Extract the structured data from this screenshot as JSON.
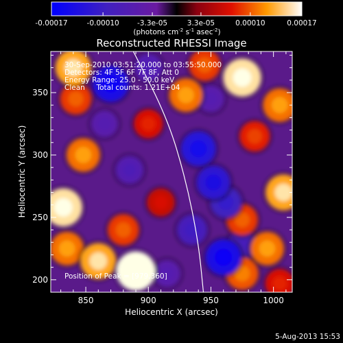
{
  "chart_data": {
    "type": "heatmap",
    "title": "Reconstructed RHESSI Image",
    "xlabel": "Heliocentric X (arcsec)",
    "ylabel": "Heliocentric Y (arcsec)",
    "xlim": [
      822,
      1015
    ],
    "ylim": [
      190,
      383
    ],
    "x_ticks": [
      850,
      900,
      950,
      1000
    ],
    "y_ticks": [
      200,
      250,
      300,
      350
    ],
    "colorbar": {
      "ticks": [
        "-0.00017",
        "-0.00010",
        "-3.3e-05",
        "3.3e-05",
        "0.00010",
        "0.00017"
      ],
      "tick_values": [
        -0.00017,
        -0.0001,
        -3.3e-05,
        3.3e-05,
        0.0001,
        0.00017
      ],
      "range": [
        -0.00017,
        0.00017
      ],
      "units_main": "(photons cm",
      "units_exp1": "-2",
      "units_mid": " s",
      "units_exp2": "-1",
      "units_end": " asec",
      "units_exp3": "-2",
      "units_close": ")"
    },
    "annotations": {
      "time_range": "30-Sep-2010 03:51:20.000 to 03:55:50.000",
      "detectors": "Detectors: 4F 5F 6F 7F 8F, Att 0",
      "energy": "Energy Range: 25.0 - 50.0 keV",
      "clean_totals": "Clean     Total counts: 1.21E+04",
      "peak": "Position of Peak = [979,360]"
    },
    "limb_arc": [
      [
        888,
        383
      ],
      [
        915,
        330
      ],
      [
        930,
        280
      ],
      [
        940,
        230
      ],
      [
        944,
        190
      ]
    ],
    "sources": [
      {
        "x": 840,
        "y": 370,
        "value": 0.00014
      },
      {
        "x": 842,
        "y": 345,
        "value": 0.0001
      },
      {
        "x": 848,
        "y": 300,
        "value": 0.00012
      },
      {
        "x": 832,
        "y": 258,
        "value": 0.00016
      },
      {
        "x": 835,
        "y": 225,
        "value": 0.00012
      },
      {
        "x": 860,
        "y": 215,
        "value": 0.00014
      },
      {
        "x": 890,
        "y": 207,
        "value": 0.00017
      },
      {
        "x": 880,
        "y": 240,
        "value": 0.0001
      },
      {
        "x": 900,
        "y": 325,
        "value": 8e-05
      },
      {
        "x": 930,
        "y": 348,
        "value": 0.00012
      },
      {
        "x": 945,
        "y": 372,
        "value": 0.0001
      },
      {
        "x": 975,
        "y": 362,
        "value": 0.00016
      },
      {
        "x": 1005,
        "y": 340,
        "value": 0.00012
      },
      {
        "x": 985,
        "y": 315,
        "value": 9e-05
      },
      {
        "x": 1008,
        "y": 270,
        "value": 0.00014
      },
      {
        "x": 975,
        "y": 248,
        "value": 0.0001
      },
      {
        "x": 995,
        "y": 225,
        "value": 0.00012
      },
      {
        "x": 975,
        "y": 205,
        "value": 0.00011
      },
      {
        "x": 1005,
        "y": 197,
        "value": 8e-05
      },
      {
        "x": 910,
        "y": 262,
        "value": 7e-05
      },
      {
        "x": 870,
        "y": 357,
        "value": -0.00014
      },
      {
        "x": 940,
        "y": 305,
        "value": -0.00013
      },
      {
        "x": 952,
        "y": 278,
        "value": -0.00012
      },
      {
        "x": 962,
        "y": 262,
        "value": -0.0001
      },
      {
        "x": 960,
        "y": 218,
        "value": -0.00014
      },
      {
        "x": 935,
        "y": 240,
        "value": -9e-05
      },
      {
        "x": 975,
        "y": 228,
        "value": -8e-05
      },
      {
        "x": 885,
        "y": 288,
        "value": -7e-05
      },
      {
        "x": 865,
        "y": 325,
        "value": -6e-05
      },
      {
        "x": 915,
        "y": 205,
        "value": -6e-05
      },
      {
        "x": 900,
        "y": 370,
        "value": -7e-05
      },
      {
        "x": 950,
        "y": 345,
        "value": -6e-05
      }
    ],
    "background_value": -2e-05
  },
  "footer": {
    "timestamp": "5-Aug-2013 15:53"
  }
}
